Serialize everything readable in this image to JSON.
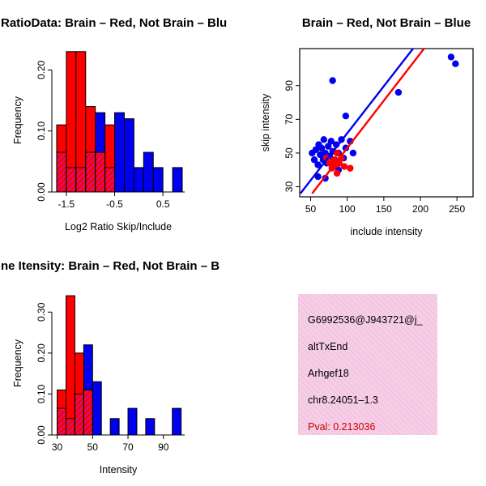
{
  "colors": {
    "red": "#ff0000",
    "blue": "#0000ee",
    "overlap": "#a020f0",
    "info_background": "#f6cde6",
    "pval": "#cc0000"
  },
  "chart_data": [
    {
      "id": "hist-ratio",
      "type": "bar",
      "title": "RatioData: Brain – Red, Not Brain – Blu",
      "xlabel": "Log2 Ratio Skip/Include",
      "ylabel": "Frequency",
      "xlim": [
        -1.8,
        0.95
      ],
      "ylim": [
        0,
        0.235
      ],
      "xticks": [
        -1.5,
        -0.5,
        0.5
      ],
      "xtick_labels": [
        "-1.5",
        "-0.5",
        "0.5"
      ],
      "yticks": [
        0,
        0.1,
        0.2
      ],
      "ytick_labels": [
        "0.00",
        "0.10",
        "0.20"
      ],
      "bin_width": 0.2,
      "grid": false,
      "series": [
        {
          "name": "Not Brain",
          "color_key": "blue",
          "bars": [
            [
              -0.9,
              0.13
            ],
            [
              -0.7,
              0.105
            ],
            [
              -0.5,
              0.13
            ],
            [
              -0.3,
              0.12
            ],
            [
              -0.1,
              0.04
            ],
            [
              0.1,
              0.065
            ],
            [
              0.3,
              0.04
            ],
            [
              0.7,
              0.04
            ]
          ]
        },
        {
          "name": "Brain",
          "color_key": "red",
          "bars": [
            [
              -1.7,
              0.11
            ],
            [
              -1.5,
              0.23
            ],
            [
              -1.3,
              0.23
            ],
            [
              -1.1,
              0.14
            ],
            [
              -0.9,
              0.065
            ],
            [
              -0.7,
              0.11
            ]
          ]
        },
        {
          "name": "Overlap",
          "color_key": "overlap",
          "hatch": true,
          "bars": [
            [
              -1.7,
              0.065
            ],
            [
              -1.5,
              0.04
            ],
            [
              -1.3,
              0.04
            ],
            [
              -1.1,
              0.065
            ],
            [
              -0.9,
              0.065
            ],
            [
              -0.7,
              0.04
            ]
          ]
        }
      ]
    },
    {
      "id": "scatter-intensity",
      "type": "scatter",
      "title": "Brain – Red, Not Brain – Blue",
      "xlabel": "include intensity",
      "ylabel": "skip intensity",
      "xlim": [
        35,
        272
      ],
      "ylim": [
        24,
        112
      ],
      "xticks": [
        50,
        100,
        150,
        200,
        250
      ],
      "yticks": [
        30,
        50,
        70,
        90
      ],
      "grid": false,
      "series": [
        {
          "name": "Not Brain",
          "color_key": "blue",
          "points": [
            [
              52,
              50
            ],
            [
              55,
              46
            ],
            [
              57,
              52
            ],
            [
              60,
              43
            ],
            [
              61,
              55
            ],
            [
              63,
              49
            ],
            [
              65,
              53
            ],
            [
              67,
              46
            ],
            [
              68,
              58
            ],
            [
              70,
              50
            ],
            [
              72,
              44
            ],
            [
              74,
              54
            ],
            [
              76,
              48
            ],
            [
              78,
              57
            ],
            [
              80,
              51
            ],
            [
              83,
              46
            ],
            [
              85,
              55
            ],
            [
              88,
              50
            ],
            [
              92,
              58
            ],
            [
              95,
              47
            ],
            [
              98,
              53
            ],
            [
              104,
              57
            ],
            [
              108,
              50
            ],
            [
              60,
              36
            ],
            [
              70,
              35
            ],
            [
              88,
              40
            ],
            [
              80,
              93
            ],
            [
              98,
              72
            ],
            [
              170,
              86
            ],
            [
              242,
              107
            ],
            [
              248,
              103
            ]
          ]
        },
        {
          "name": "Brain",
          "color_key": "red",
          "points": [
            [
              72,
              47
            ],
            [
              76,
              44
            ],
            [
              79,
              41
            ],
            [
              82,
              46
            ],
            [
              84,
              43
            ],
            [
              86,
              50
            ],
            [
              89,
              44
            ],
            [
              92,
              47
            ],
            [
              96,
              42
            ],
            [
              86,
              38
            ],
            [
              104,
              41
            ]
          ]
        }
      ],
      "fit_lines": [
        {
          "name": "not-brain-fit",
          "color_key": "blue",
          "x": [
            36,
            190
          ],
          "y": [
            26,
            112
          ]
        },
        {
          "name": "brain-fit",
          "color_key": "red",
          "x": [
            52,
            205
          ],
          "y": [
            26,
            112
          ]
        }
      ]
    },
    {
      "id": "hist-intensity",
      "type": "bar",
      "title": "ne Itensity: Brain – Red, Not Brain – B",
      "xlabel": "Intensity",
      "ylabel": "Frequency",
      "xlim": [
        27,
        102
      ],
      "ylim": [
        0,
        0.35
      ],
      "xticks": [
        30,
        50,
        70,
        90
      ],
      "xtick_labels": [
        "30",
        "50",
        "70",
        "90"
      ],
      "yticks": [
        0,
        0.1,
        0.2,
        0.3
      ],
      "ytick_labels": [
        "0.00",
        "0.10",
        "0.20",
        "0.30"
      ],
      "bin_width": 5,
      "grid": false,
      "series": [
        {
          "name": "Not Brain",
          "color_key": "blue",
          "bars": [
            [
              40,
              0.13
            ],
            [
              45,
              0.22
            ],
            [
              50,
              0.13
            ],
            [
              60,
              0.04
            ],
            [
              70,
              0.065
            ],
            [
              80,
              0.04
            ],
            [
              95,
              0.065
            ]
          ]
        },
        {
          "name": "Brain",
          "color_key": "red",
          "bars": [
            [
              30,
              0.11
            ],
            [
              35,
              0.34
            ],
            [
              40,
              0.2
            ],
            [
              45,
              0.11
            ]
          ]
        },
        {
          "name": "Overlap",
          "color_key": "overlap",
          "hatch": true,
          "bars": [
            [
              30,
              0.065
            ],
            [
              35,
              0.04
            ],
            [
              40,
              0.1
            ],
            [
              45,
              0.11
            ]
          ]
        }
      ]
    }
  ],
  "info": {
    "lines": [
      {
        "text": "G6992536@J943721@j_",
        "color": "#000000"
      },
      {
        "text": "altTxEnd",
        "color": "#000000"
      },
      {
        "text": "Arhgef18",
        "color": "#000000"
      },
      {
        "text": "chr8.24051–1.3",
        "color": "#000000"
      },
      {
        "text": "Pval: 0.213036",
        "color": "#cc0000"
      }
    ]
  }
}
